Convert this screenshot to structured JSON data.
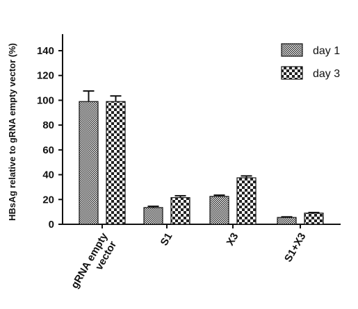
{
  "chart_data": {
    "type": "bar",
    "categories": [
      "gRNA empty vector",
      "S1",
      "X3",
      "S1+X3"
    ],
    "series": [
      {
        "name": "day 1",
        "values": [
          99,
          13.5,
          22.5,
          5.5
        ],
        "errors": [
          8.5,
          1,
          1,
          0.5
        ],
        "pattern": "fine-checker"
      },
      {
        "name": "day 3",
        "values": [
          99,
          21.5,
          37.5,
          9
        ],
        "errors": [
          4.5,
          1.5,
          1.5,
          0.5
        ],
        "pattern": "coarse-checker"
      }
    ],
    "title": "",
    "xlabel": "",
    "ylabel": "HBsAg relative to gRNA empty vector (%)",
    "ylim": [
      0,
      150
    ],
    "yticks": [
      0,
      20,
      40,
      60,
      80,
      100,
      120,
      140
    ],
    "grid": false,
    "legend_position": "top-right",
    "colors": {
      "axis": "#111111",
      "bar_dark": "#222222",
      "bar_light": "#ffffff"
    }
  }
}
